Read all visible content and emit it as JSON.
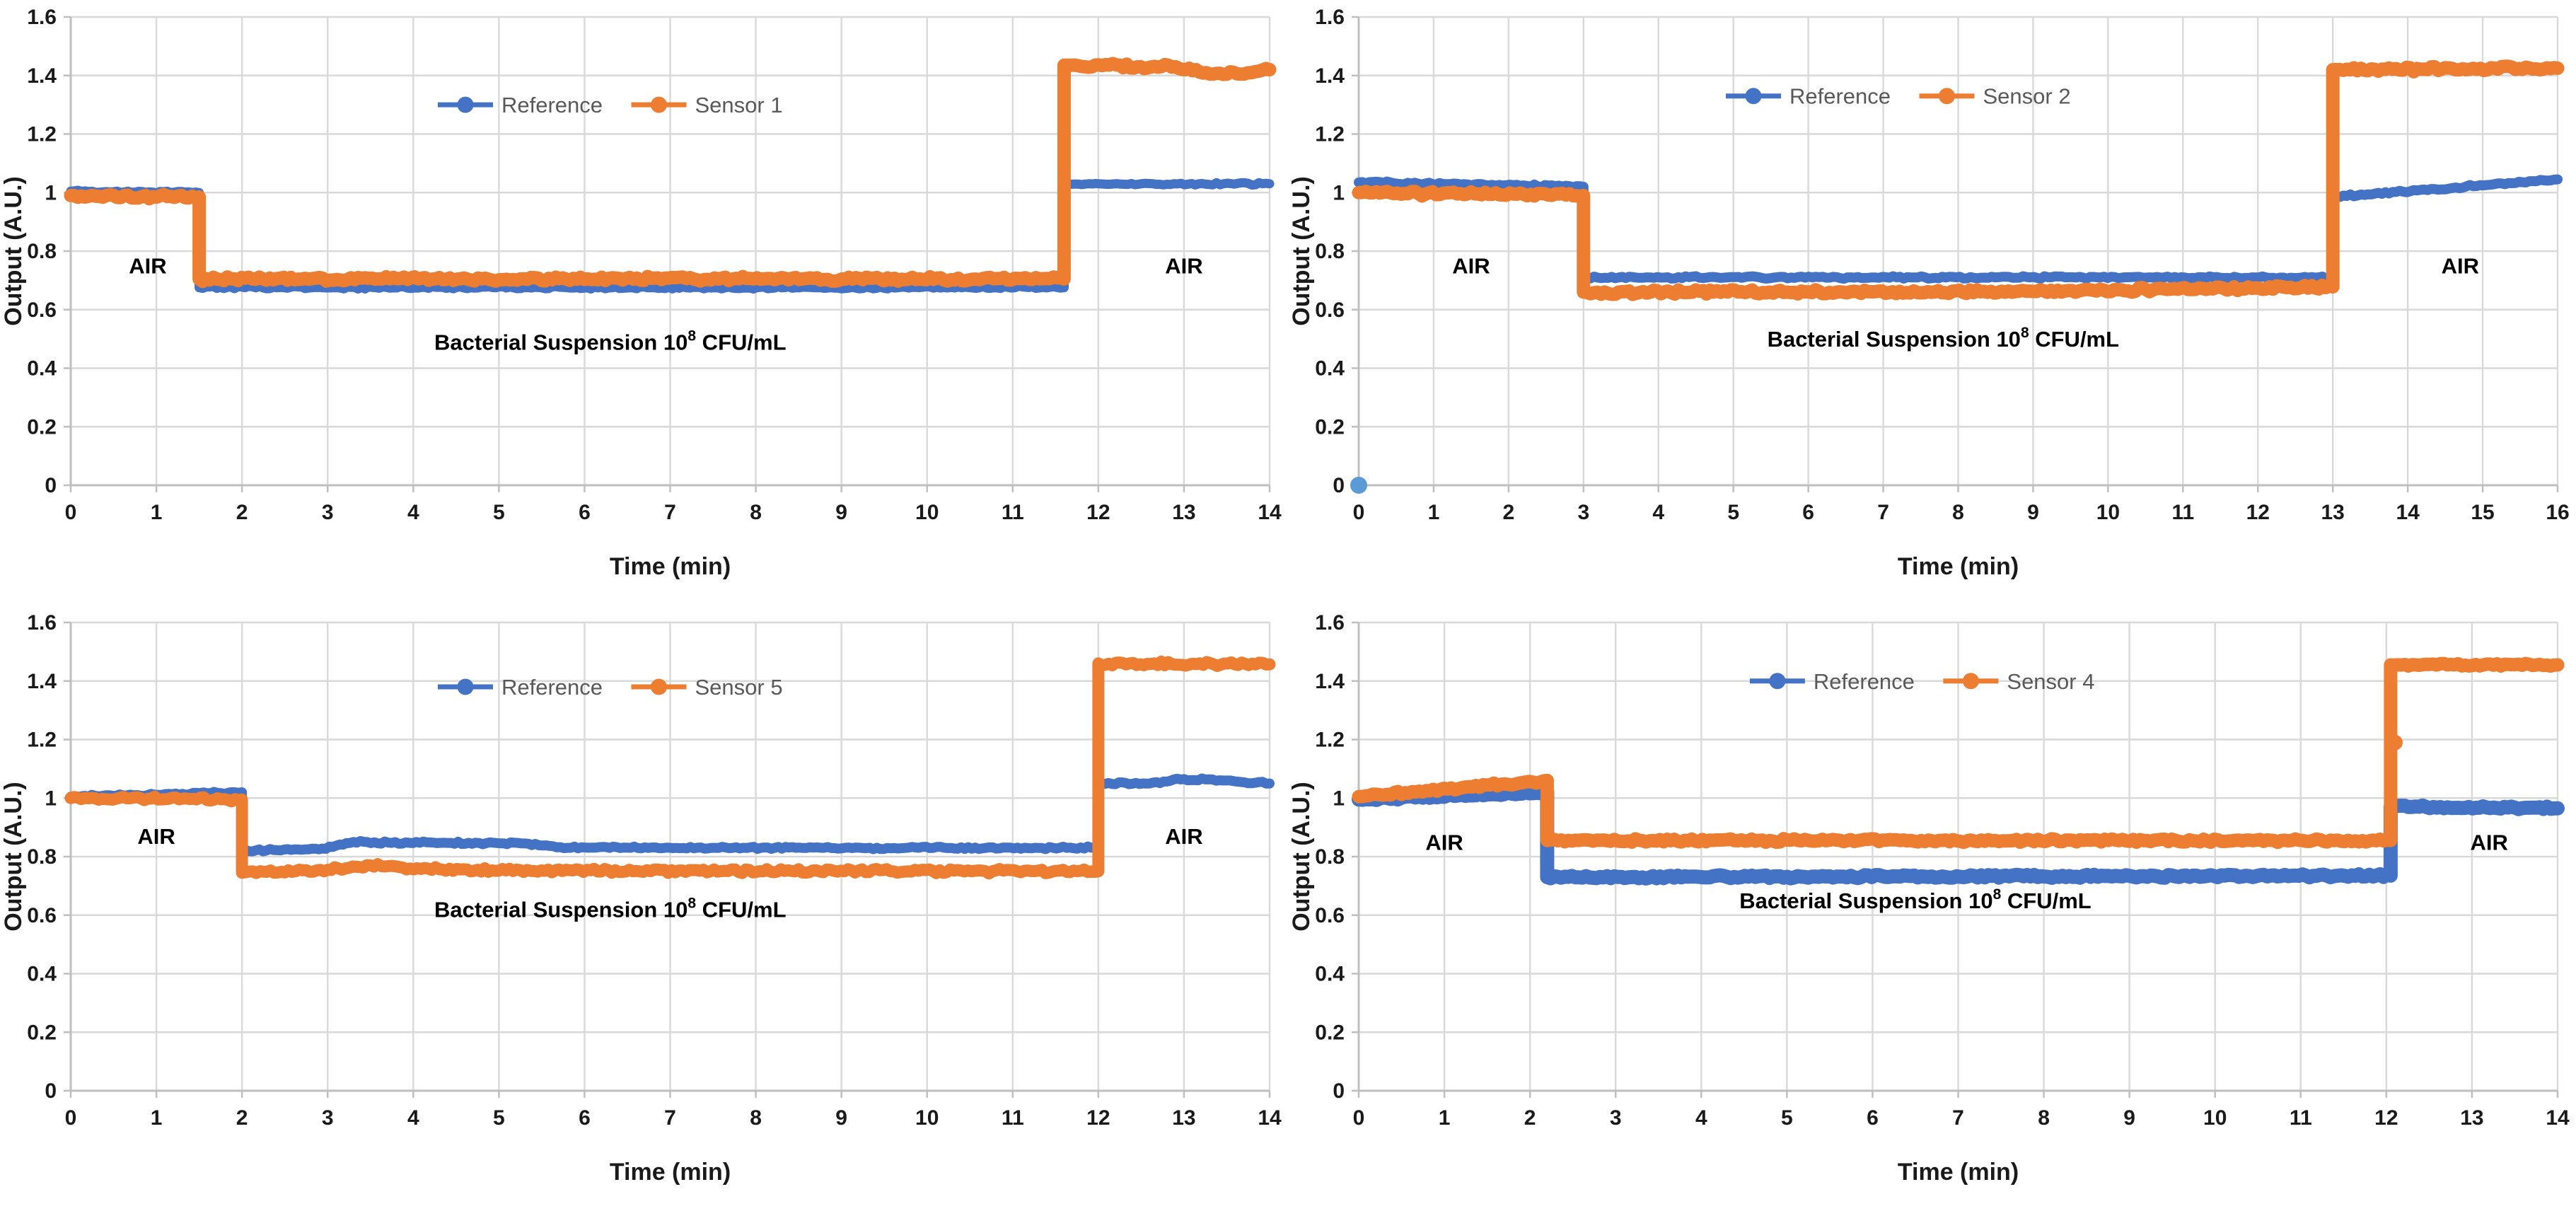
{
  "figure": {
    "background": "#FFFFFF",
    "description": "Four sensor response line charts, output vs time, air and bacterial suspension phases"
  },
  "colors": {
    "blue": "#4472C4",
    "orange": "#ED7D31",
    "lightblue": "#5B9BD5",
    "grid": "#D9D9D9",
    "axis": "#BFBFBF",
    "tick_text": "#1A1A1A",
    "legend_text": "#595959",
    "annotation": "#000000"
  },
  "chart_data": [
    {
      "type": "line",
      "panel": "top-left",
      "xlabel": "Time (min)",
      "ylabel": "Output (A.U.)",
      "xlim": [
        0,
        14
      ],
      "xtick_step": 1,
      "ylim": [
        0,
        1.6
      ],
      "ytick_step": 0.2,
      "grid": true,
      "legend": {
        "position": "top-center",
        "y": 1.3,
        "fx": 0.45,
        "entries": [
          {
            "label": "Reference",
            "color": "blue"
          },
          {
            "label": "Sensor 1",
            "color": "orange"
          }
        ]
      },
      "annotations": [
        {
          "text": "AIR",
          "x": 0.9,
          "y": 0.75
        },
        {
          "text": "AIR",
          "x": 13.0,
          "y": 0.75
        },
        {
          "text": "Bacterial Suspension 10",
          "sup": "8",
          "tail": " CFU/mL",
          "x": 6.3,
          "y": 0.49
        }
      ],
      "series": [
        {
          "name": "Reference",
          "color": "blue",
          "stroke_px": 13,
          "jitter": 0.005,
          "points": [
            [
              0,
              1.005
            ],
            [
              1.5,
              1.0
            ],
            [
              1.5,
              0.675
            ],
            [
              11.6,
              0.675
            ],
            [
              11.6,
              1.03
            ],
            [
              14,
              1.03
            ]
          ]
        },
        {
          "name": "Sensor 1",
          "color": "orange",
          "stroke_px": 19,
          "jitter": 0.009,
          "points": [
            [
              0,
              0.99
            ],
            [
              1.5,
              0.985
            ],
            [
              1.5,
              0.705
            ],
            [
              11.6,
              0.705
            ],
            [
              11.6,
              1.435
            ],
            [
              12.9,
              1.43
            ],
            [
              13.3,
              1.405
            ],
            [
              13.7,
              1.405
            ],
            [
              14,
              1.42
            ]
          ]
        }
      ],
      "extra_points": []
    },
    {
      "type": "line",
      "panel": "top-right",
      "xlabel": "Time (min)",
      "ylabel": "Output (A.U.)",
      "xlim": [
        0,
        16
      ],
      "xtick_step": 1,
      "ylim": [
        0,
        1.6
      ],
      "ytick_step": 0.2,
      "grid": true,
      "legend": {
        "position": "top-center",
        "y": 1.33,
        "fx": 0.45,
        "entries": [
          {
            "label": "Reference",
            "color": "blue"
          },
          {
            "label": "Sensor 2",
            "color": "orange"
          }
        ]
      },
      "annotations": [
        {
          "text": "AIR",
          "x": 1.5,
          "y": 0.75
        },
        {
          "text": "AIR",
          "x": 14.7,
          "y": 0.75
        },
        {
          "text": "Bacterial Suspension 10",
          "sup": "8",
          "tail": " CFU/mL",
          "x": 7.8,
          "y": 0.5
        }
      ],
      "series": [
        {
          "name": "Reference",
          "color": "blue",
          "stroke_px": 14,
          "jitter": 0.005,
          "points": [
            [
              0,
              1.035
            ],
            [
              3.0,
              1.02
            ],
            [
              3.0,
              0.71
            ],
            [
              13.0,
              0.71
            ],
            [
              13.0,
              0.985
            ],
            [
              16,
              1.045
            ]
          ]
        },
        {
          "name": "Sensor 2",
          "color": "orange",
          "stroke_px": 19,
          "jitter": 0.009,
          "points": [
            [
              0,
              1.0
            ],
            [
              3.0,
              0.99
            ],
            [
              3.0,
              0.66
            ],
            [
              9.0,
              0.662
            ],
            [
              13.0,
              0.678
            ],
            [
              13.0,
              1.42
            ],
            [
              16,
              1.425
            ]
          ]
        }
      ],
      "extra_points": [
        {
          "x": 0,
          "y": 0,
          "color": "lightblue",
          "r": 12
        }
      ]
    },
    {
      "type": "line",
      "panel": "bottom-left",
      "xlabel": "Time (min)",
      "ylabel": "Output (A.U.)",
      "xlim": [
        0,
        14
      ],
      "xtick_step": 1,
      "ylim": [
        0,
        1.6
      ],
      "ytick_step": 0.2,
      "grid": true,
      "legend": {
        "position": "top-center",
        "y": 1.38,
        "fx": 0.45,
        "entries": [
          {
            "label": "Reference",
            "color": "blue"
          },
          {
            "label": "Sensor 5",
            "color": "orange"
          }
        ]
      },
      "annotations": [
        {
          "text": "AIR",
          "x": 1.0,
          "y": 0.87
        },
        {
          "text": "AIR",
          "x": 13.0,
          "y": 0.87
        },
        {
          "text": "Bacterial Suspension 10",
          "sup": "8",
          "tail": " CFU/mL",
          "x": 6.3,
          "y": 0.62
        }
      ],
      "series": [
        {
          "name": "Reference",
          "color": "blue",
          "stroke_px": 14,
          "jitter": 0.005,
          "points": [
            [
              0,
              1.005
            ],
            [
              2.0,
              1.02
            ],
            [
              2.0,
              0.82
            ],
            [
              2.9,
              0.825
            ],
            [
              3.3,
              0.85
            ],
            [
              5.3,
              0.845
            ],
            [
              5.8,
              0.83
            ],
            [
              12.0,
              0.83
            ],
            [
              12.0,
              1.05
            ],
            [
              12.6,
              1.05
            ],
            [
              13.0,
              1.065
            ],
            [
              13.5,
              1.06
            ],
            [
              14,
              1.05
            ]
          ]
        },
        {
          "name": "Sensor 5",
          "color": "orange",
          "stroke_px": 17,
          "jitter": 0.008,
          "points": [
            [
              0,
              1.0
            ],
            [
              2.0,
              0.995
            ],
            [
              2.0,
              0.745
            ],
            [
              3.0,
              0.755
            ],
            [
              3.5,
              0.77
            ],
            [
              4.3,
              0.757
            ],
            [
              5.0,
              0.752
            ],
            [
              12.0,
              0.75
            ],
            [
              12.0,
              1.46
            ],
            [
              14,
              1.457
            ]
          ]
        }
      ],
      "extra_points": []
    },
    {
      "type": "line",
      "panel": "bottom-right",
      "xlabel": "Time (min)",
      "ylabel": "Output (A.U.)",
      "xlim": [
        0,
        14
      ],
      "xtick_step": 1,
      "ylim": [
        0,
        1.6
      ],
      "ytick_step": 0.2,
      "grid": true,
      "legend": {
        "position": "top-center",
        "y": 1.4,
        "fx": 0.47,
        "entries": [
          {
            "label": "Reference",
            "color": "blue"
          },
          {
            "label": "Sensor 4",
            "color": "orange"
          }
        ]
      },
      "annotations": [
        {
          "text": "AIR",
          "x": 1.0,
          "y": 0.85
        },
        {
          "text": "AIR",
          "x": 13.2,
          "y": 0.85
        },
        {
          "text": "Bacterial Suspension 10",
          "sup": "8",
          "tail": " CFU/mL",
          "x": 6.5,
          "y": 0.65
        }
      ],
      "series": [
        {
          "name": "Reference",
          "color": "blue",
          "stroke_px": 20,
          "jitter": 0.006,
          "points": [
            [
              0,
              0.995
            ],
            [
              2.2,
              1.02
            ],
            [
              2.2,
              0.73
            ],
            [
              12.05,
              0.735
            ],
            [
              12.05,
              0.97
            ],
            [
              14,
              0.965
            ]
          ]
        },
        {
          "name": "Sensor 4",
          "color": "orange",
          "stroke_px": 19,
          "jitter": 0.007,
          "points": [
            [
              0,
              1.005
            ],
            [
              2.2,
              1.06
            ],
            [
              2.2,
              0.855
            ],
            [
              12.05,
              0.855
            ],
            [
              12.05,
              1.455
            ],
            [
              14,
              1.455
            ]
          ]
        }
      ],
      "extra_points": [
        {
          "x": 12.1,
          "y": 1.19,
          "color": "orange",
          "r": 11
        }
      ]
    }
  ]
}
